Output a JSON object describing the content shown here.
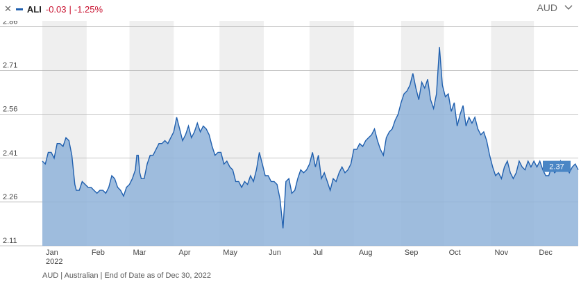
{
  "legend": {
    "close_icon": "close-icon",
    "ticker": "ALI",
    "change_abs": "-0.03",
    "separator": "|",
    "change_pct": "-1.25%",
    "series_color": "#1f5fae",
    "change_color": "#c8102e"
  },
  "currency_selector": {
    "label": "AUD",
    "icon": "chevron-down-icon"
  },
  "footnote": "AUD | Australian | End of Date as of Dec 30, 2022",
  "chart_data": {
    "type": "area",
    "title": "",
    "xlabel": "",
    "ylabel": "",
    "x_range": [
      1,
      364
    ],
    "y_range": [
      2.11,
      2.88
    ],
    "y_ticks": [
      2.11,
      2.26,
      2.41,
      2.56,
      2.71,
      2.86
    ],
    "y_tick_labels": [
      "2.11",
      "2.26",
      "2.41",
      "2.56",
      "2.71",
      "2.86"
    ],
    "x_ticks": [
      {
        "label": "Jan",
        "day": 1,
        "sub": "2022"
      },
      {
        "label": "Feb",
        "day": 32
      },
      {
        "label": "Mar",
        "day": 60
      },
      {
        "label": "Apr",
        "day": 91
      },
      {
        "label": "May",
        "day": 121
      },
      {
        "label": "Jun",
        "day": 152
      },
      {
        "label": "Jul",
        "day": 182
      },
      {
        "label": "Aug",
        "day": 213
      },
      {
        "label": "Sep",
        "day": 244
      },
      {
        "label": "Oct",
        "day": 274
      },
      {
        "label": "Nov",
        "day": 305
      },
      {
        "label": "Dec",
        "day": 335
      }
    ],
    "month_bands": [
      [
        1,
        31
      ],
      [
        60,
        90
      ],
      [
        121,
        151
      ],
      [
        182,
        212
      ],
      [
        244,
        273
      ],
      [
        305,
        334
      ]
    ],
    "last_value_label": "2.37",
    "line_color": "#1f5fae",
    "fill_color": "#8fb3d9",
    "series": [
      {
        "name": "ALI",
        "points": [
          [
            1,
            2.4
          ],
          [
            3,
            2.39
          ],
          [
            5,
            2.43
          ],
          [
            7,
            2.43
          ],
          [
            9,
            2.41
          ],
          [
            11,
            2.46
          ],
          [
            13,
            2.46
          ],
          [
            15,
            2.45
          ],
          [
            17,
            2.48
          ],
          [
            19,
            2.47
          ],
          [
            21,
            2.42
          ],
          [
            23,
            2.32
          ],
          [
            24,
            2.3
          ],
          [
            26,
            2.3
          ],
          [
            28,
            2.33
          ],
          [
            30,
            2.32
          ],
          [
            32,
            2.31
          ],
          [
            34,
            2.31
          ],
          [
            36,
            2.3
          ],
          [
            38,
            2.29
          ],
          [
            40,
            2.3
          ],
          [
            42,
            2.3
          ],
          [
            44,
            2.29
          ],
          [
            46,
            2.31
          ],
          [
            48,
            2.35
          ],
          [
            50,
            2.34
          ],
          [
            52,
            2.31
          ],
          [
            54,
            2.3
          ],
          [
            56,
            2.28
          ],
          [
            58,
            2.31
          ],
          [
            60,
            2.32
          ],
          [
            62,
            2.34
          ],
          [
            64,
            2.37
          ],
          [
            65,
            2.42
          ],
          [
            66,
            2.42
          ],
          [
            67,
            2.36
          ],
          [
            68,
            2.34
          ],
          [
            70,
            2.34
          ],
          [
            72,
            2.39
          ],
          [
            74,
            2.42
          ],
          [
            76,
            2.42
          ],
          [
            78,
            2.44
          ],
          [
            80,
            2.46
          ],
          [
            82,
            2.46
          ],
          [
            84,
            2.47
          ],
          [
            86,
            2.46
          ],
          [
            88,
            2.48
          ],
          [
            90,
            2.5
          ],
          [
            92,
            2.55
          ],
          [
            94,
            2.51
          ],
          [
            96,
            2.47
          ],
          [
            98,
            2.49
          ],
          [
            100,
            2.52
          ],
          [
            102,
            2.48
          ],
          [
            104,
            2.5
          ],
          [
            106,
            2.53
          ],
          [
            108,
            2.5
          ],
          [
            110,
            2.52
          ],
          [
            112,
            2.51
          ],
          [
            114,
            2.49
          ],
          [
            116,
            2.45
          ],
          [
            118,
            2.42
          ],
          [
            120,
            2.43
          ],
          [
            122,
            2.43
          ],
          [
            124,
            2.39
          ],
          [
            126,
            2.4
          ],
          [
            128,
            2.38
          ],
          [
            130,
            2.37
          ],
          [
            132,
            2.33
          ],
          [
            134,
            2.33
          ],
          [
            136,
            2.31
          ],
          [
            138,
            2.33
          ],
          [
            140,
            2.32
          ],
          [
            142,
            2.35
          ],
          [
            144,
            2.33
          ],
          [
            146,
            2.37
          ],
          [
            148,
            2.43
          ],
          [
            150,
            2.39
          ],
          [
            152,
            2.35
          ],
          [
            154,
            2.35
          ],
          [
            156,
            2.33
          ],
          [
            158,
            2.33
          ],
          [
            160,
            2.32
          ],
          [
            162,
            2.27
          ],
          [
            164,
            2.17
          ],
          [
            166,
            2.33
          ],
          [
            168,
            2.34
          ],
          [
            170,
            2.29
          ],
          [
            172,
            2.3
          ],
          [
            174,
            2.34
          ],
          [
            176,
            2.37
          ],
          [
            178,
            2.36
          ],
          [
            180,
            2.37
          ],
          [
            182,
            2.39
          ],
          [
            184,
            2.43
          ],
          [
            186,
            2.38
          ],
          [
            188,
            2.42
          ],
          [
            190,
            2.34
          ],
          [
            192,
            2.36
          ],
          [
            194,
            2.33
          ],
          [
            196,
            2.3
          ],
          [
            198,
            2.34
          ],
          [
            200,
            2.33
          ],
          [
            202,
            2.36
          ],
          [
            204,
            2.38
          ],
          [
            206,
            2.36
          ],
          [
            208,
            2.37
          ],
          [
            210,
            2.39
          ],
          [
            212,
            2.44
          ],
          [
            214,
            2.44
          ],
          [
            216,
            2.46
          ],
          [
            218,
            2.45
          ],
          [
            220,
            2.47
          ],
          [
            222,
            2.48
          ],
          [
            224,
            2.49
          ],
          [
            226,
            2.51
          ],
          [
            228,
            2.47
          ],
          [
            230,
            2.44
          ],
          [
            232,
            2.42
          ],
          [
            234,
            2.48
          ],
          [
            236,
            2.5
          ],
          [
            238,
            2.51
          ],
          [
            240,
            2.54
          ],
          [
            242,
            2.56
          ],
          [
            244,
            2.6
          ],
          [
            246,
            2.63
          ],
          [
            248,
            2.64
          ],
          [
            250,
            2.66
          ],
          [
            252,
            2.7
          ],
          [
            254,
            2.65
          ],
          [
            256,
            2.61
          ],
          [
            258,
            2.67
          ],
          [
            260,
            2.65
          ],
          [
            262,
            2.68
          ],
          [
            264,
            2.61
          ],
          [
            266,
            2.58
          ],
          [
            268,
            2.63
          ],
          [
            270,
            2.79
          ],
          [
            272,
            2.66
          ],
          [
            274,
            2.62
          ],
          [
            276,
            2.63
          ],
          [
            278,
            2.57
          ],
          [
            280,
            2.6
          ],
          [
            282,
            2.52
          ],
          [
            284,
            2.56
          ],
          [
            286,
            2.59
          ],
          [
            288,
            2.52
          ],
          [
            290,
            2.55
          ],
          [
            292,
            2.53
          ],
          [
            294,
            2.55
          ],
          [
            296,
            2.51
          ],
          [
            298,
            2.49
          ],
          [
            300,
            2.5
          ],
          [
            302,
            2.47
          ],
          [
            304,
            2.42
          ],
          [
            306,
            2.38
          ],
          [
            308,
            2.35
          ],
          [
            310,
            2.36
          ],
          [
            312,
            2.34
          ],
          [
            314,
            2.38
          ],
          [
            316,
            2.4
          ],
          [
            318,
            2.36
          ],
          [
            320,
            2.34
          ],
          [
            322,
            2.36
          ],
          [
            324,
            2.4
          ],
          [
            326,
            2.38
          ],
          [
            328,
            2.37
          ],
          [
            330,
            2.4
          ],
          [
            332,
            2.38
          ],
          [
            334,
            2.4
          ],
          [
            336,
            2.38
          ],
          [
            338,
            2.4
          ],
          [
            340,
            2.37
          ],
          [
            342,
            2.35
          ],
          [
            344,
            2.35
          ],
          [
            346,
            2.38
          ],
          [
            348,
            2.36
          ],
          [
            350,
            2.37
          ],
          [
            352,
            2.4
          ],
          [
            354,
            2.37
          ],
          [
            356,
            2.38
          ],
          [
            358,
            2.36
          ],
          [
            360,
            2.38
          ],
          [
            362,
            2.39
          ],
          [
            364,
            2.37
          ]
        ]
      }
    ]
  }
}
